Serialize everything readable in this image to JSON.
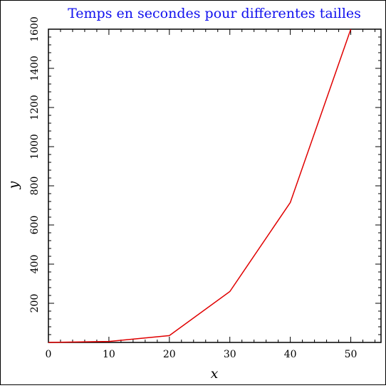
{
  "chart_data": {
    "type": "line",
    "title": "Temps en secondes pour differentes tailles",
    "xlabel": "x",
    "ylabel": "y",
    "xlim": [
      0,
      55
    ],
    "ylim": [
      0,
      1600
    ],
    "x_ticks": [
      0,
      10,
      20,
      30,
      40,
      50
    ],
    "y_ticks": [
      200,
      400,
      600,
      800,
      1000,
      1200,
      1400,
      1600
    ],
    "grid": false,
    "legend": "none",
    "series": [
      {
        "color": "#e00000",
        "x": [
          0,
          10,
          20,
          30,
          40,
          50
        ],
        "y": [
          0,
          5,
          35,
          260,
          715,
          1600
        ]
      }
    ]
  },
  "colors": {
    "title": "#1010ee",
    "series_line": "#e00000",
    "axes": "#000000"
  }
}
